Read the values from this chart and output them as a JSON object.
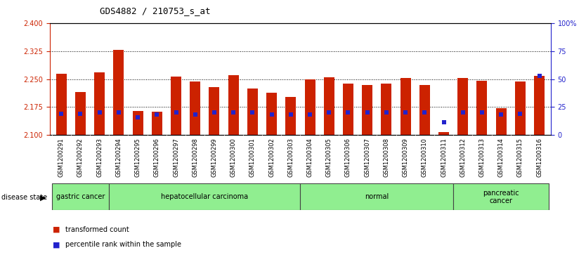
{
  "title": "GDS4882 / 210753_s_at",
  "samples": [
    "GSM1200291",
    "GSM1200292",
    "GSM1200293",
    "GSM1200294",
    "GSM1200295",
    "GSM1200296",
    "GSM1200297",
    "GSM1200298",
    "GSM1200299",
    "GSM1200300",
    "GSM1200301",
    "GSM1200302",
    "GSM1200303",
    "GSM1200304",
    "GSM1200305",
    "GSM1200306",
    "GSM1200307",
    "GSM1200308",
    "GSM1200309",
    "GSM1200310",
    "GSM1200311",
    "GSM1200312",
    "GSM1200313",
    "GSM1200314",
    "GSM1200315",
    "GSM1200316"
  ],
  "red_bar_heights": [
    2.265,
    2.215,
    2.267,
    2.328,
    2.165,
    2.162,
    2.257,
    2.243,
    2.228,
    2.26,
    2.225,
    2.213,
    2.203,
    2.25,
    2.255,
    2.238,
    2.235,
    2.238,
    2.252,
    2.235,
    2.108,
    2.252,
    2.245,
    2.173,
    2.243,
    2.258
  ],
  "blue_dot_y": [
    2.158,
    2.158,
    2.16,
    2.16,
    2.148,
    2.155,
    2.16,
    2.155,
    2.16,
    2.16,
    2.16,
    2.155,
    2.155,
    2.155,
    2.16,
    2.16,
    2.16,
    2.16,
    2.16,
    2.16,
    2.135,
    2.16,
    2.16,
    2.155,
    2.158,
    2.258
  ],
  "ymin": 2.1,
  "ymax": 2.4,
  "yticks_left": [
    2.1,
    2.175,
    2.25,
    2.325,
    2.4
  ],
  "yticks_right_vals": [
    0,
    25,
    50,
    75,
    100
  ],
  "yticks_right_labels": [
    "0",
    "25",
    "50",
    "75",
    "100%"
  ],
  "bar_color": "#CC2200",
  "dot_color": "#2222CC",
  "bg_color": "#FFFFFF",
  "plot_bg_color": "#FFFFFF",
  "tick_bg_color": "#CCCCCC",
  "disease_groups": [
    {
      "label": "gastric cancer",
      "start": 0,
      "end": 3
    },
    {
      "label": "hepatocellular carcinoma",
      "start": 3,
      "end": 13
    },
    {
      "label": "normal",
      "start": 13,
      "end": 21
    },
    {
      "label": "pancreatic\ncancer",
      "start": 21,
      "end": 26
    }
  ],
  "disease_bg": "#90EE90",
  "disease_label_color": "#000000",
  "legend_red_label": "transformed count",
  "legend_blue_label": "percentile rank within the sample",
  "left_axis_color": "#CC2200",
  "right_axis_color": "#2222CC"
}
